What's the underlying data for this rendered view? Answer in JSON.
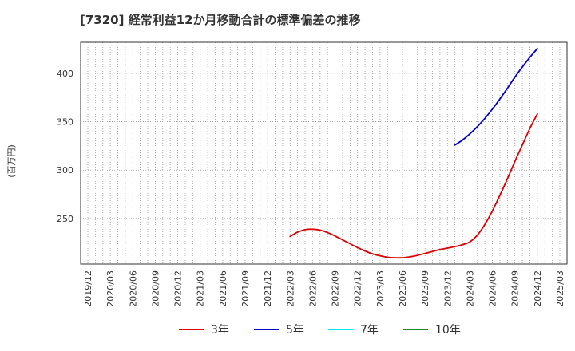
{
  "chart_data": {
    "type": "line",
    "title": "[7320]  経常利益12か月移動合計の標準偏差の推移",
    "ylabel": "(百万円)",
    "xlabel": "",
    "ylim": [
      203,
      432
    ],
    "yticks": [
      250,
      300,
      350,
      400
    ],
    "ytick_labels": [
      "250",
      "300",
      "350",
      "400"
    ],
    "x_categories": [
      "2019/12",
      "2020/03",
      "2020/06",
      "2020/09",
      "2020/12",
      "2021/03",
      "2021/06",
      "2021/09",
      "2021/12",
      "2022/03",
      "2022/06",
      "2022/09",
      "2022/12",
      "2023/03",
      "2023/06",
      "2023/09",
      "2023/12",
      "2024/03",
      "2024/06",
      "2024/09",
      "2024/12",
      "2025/03"
    ],
    "grid": true,
    "legend_position": "bottom",
    "series": [
      {
        "name": "3年",
        "color": "#dd0000",
        "points": [
          [
            "2022/03",
            231.5
          ],
          [
            "2022/04",
            236.0
          ],
          [
            "2022/05",
            238.5
          ],
          [
            "2022/06",
            239.0
          ],
          [
            "2022/07",
            238.0
          ],
          [
            "2022/08",
            235.5
          ],
          [
            "2022/09",
            232.0
          ],
          [
            "2022/10",
            228.0
          ],
          [
            "2022/11",
            224.0
          ],
          [
            "2022/12",
            220.0
          ],
          [
            "2023/01",
            216.5
          ],
          [
            "2023/02",
            213.5
          ],
          [
            "2023/03",
            211.5
          ],
          [
            "2023/04",
            210.0
          ],
          [
            "2023/05",
            209.5
          ],
          [
            "2023/06",
            209.5
          ],
          [
            "2023/07",
            210.5
          ],
          [
            "2023/08",
            212.0
          ],
          [
            "2023/09",
            214.0
          ],
          [
            "2023/10",
            216.0
          ],
          [
            "2023/11",
            218.0
          ],
          [
            "2023/12",
            219.5
          ],
          [
            "2024/01",
            221.0
          ],
          [
            "2024/02",
            223.0
          ],
          [
            "2024/03",
            226.0
          ],
          [
            "2024/04",
            233.0
          ],
          [
            "2024/05",
            244.0
          ],
          [
            "2024/06",
            258.0
          ],
          [
            "2024/07",
            274.0
          ],
          [
            "2024/08",
            291.0
          ],
          [
            "2024/09",
            309.0
          ],
          [
            "2024/10",
            326.0
          ],
          [
            "2024/11",
            343.0
          ],
          [
            "2024/12",
            358.0
          ]
        ]
      },
      {
        "name": "5年",
        "color": "#0000cc",
        "points": [
          [
            "2024/01",
            326.0
          ],
          [
            "2024/02",
            331.0
          ],
          [
            "2024/03",
            337.5
          ],
          [
            "2024/04",
            345.0
          ],
          [
            "2024/05",
            353.5
          ],
          [
            "2024/06",
            363.0
          ],
          [
            "2024/07",
            373.5
          ],
          [
            "2024/08",
            384.5
          ],
          [
            "2024/09",
            396.0
          ],
          [
            "2024/10",
            406.5
          ],
          [
            "2024/11",
            416.5
          ],
          [
            "2024/12",
            425.5
          ]
        ]
      },
      {
        "name": "7年",
        "color": "#00e5ee",
        "points": []
      },
      {
        "name": "10年",
        "color": "#228b22",
        "points": []
      }
    ]
  }
}
